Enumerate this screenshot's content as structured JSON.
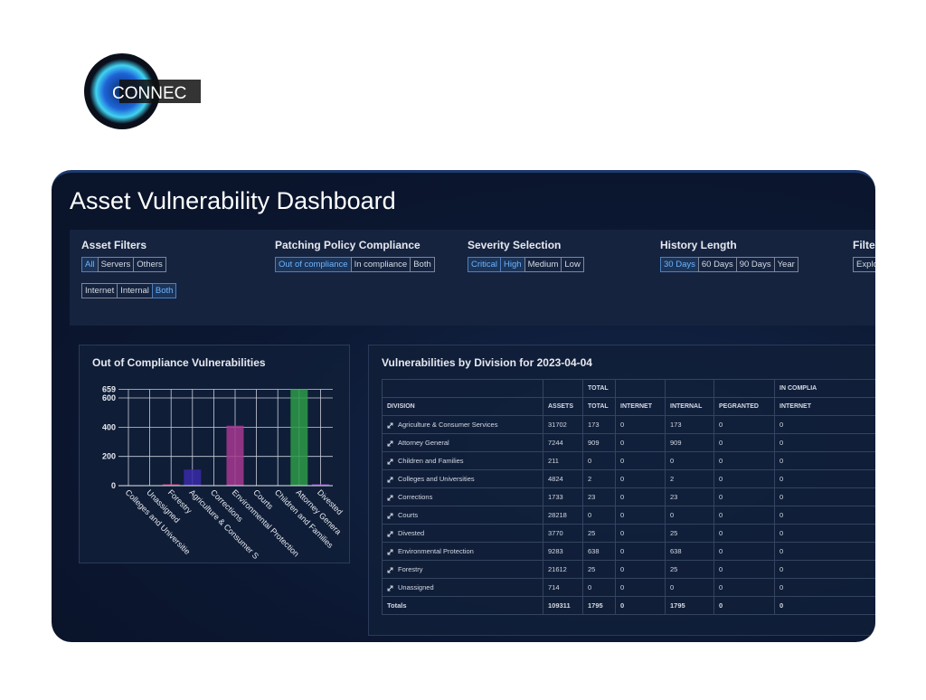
{
  "logo": {
    "text": "CONNEC"
  },
  "header": {
    "title": "Asset Vulnerability Dashboard"
  },
  "filters": [
    {
      "label": "Asset Filters",
      "rows": [
        [
          {
            "label": "All",
            "active": true
          },
          {
            "label": "Servers",
            "active": false
          },
          {
            "label": "Others",
            "active": false
          }
        ],
        [
          {
            "label": "Internet",
            "active": false
          },
          {
            "label": "Internal",
            "active": false
          },
          {
            "label": "Both",
            "active": true
          }
        ]
      ]
    },
    {
      "label": "Patching Policy Compliance",
      "rows": [
        [
          {
            "label": "Out of compliance",
            "active": true
          },
          {
            "label": "In compliance",
            "active": false
          },
          {
            "label": "Both",
            "active": false
          }
        ]
      ]
    },
    {
      "label": "Severity Selection",
      "rows": [
        [
          {
            "label": "Critical",
            "active": true
          },
          {
            "label": "High",
            "active": true
          },
          {
            "label": "Medium",
            "active": false
          },
          {
            "label": "Low",
            "active": false
          }
        ]
      ]
    },
    {
      "label": "History Length",
      "rows": [
        [
          {
            "label": "30 Days",
            "active": true
          },
          {
            "label": "60 Days",
            "active": false
          },
          {
            "label": "90 Days",
            "active": false
          },
          {
            "label": "Year",
            "active": false
          }
        ]
      ]
    },
    {
      "label": "Filte",
      "rows": [
        [
          {
            "label": "Explo",
            "active": false
          }
        ]
      ]
    }
  ],
  "chart_data": {
    "type": "bar",
    "title": "Out of Compliance Vulnerabilities",
    "categories": [
      "Colleges and Universitie",
      "Unassigned",
      "Forestry",
      "Agriculture & Consumer S",
      "Corrections",
      "Environmental Protection",
      "Courts",
      "Children and Families",
      "Attorney Genera",
      "Divested"
    ],
    "values": [
      0,
      0,
      10,
      110,
      0,
      410,
      0,
      0,
      659,
      10
    ],
    "colors": [
      "#c0306a",
      "#c0306a",
      "#c0306a",
      "#3a2aa8",
      "#a4388f",
      "#a4388f",
      "#2d9a48",
      "#2d9a48",
      "#2d9a48",
      "#8a3ac0"
    ],
    "ylim": [
      0,
      659
    ],
    "yticks": [
      0,
      200,
      400,
      600,
      659
    ],
    "grid": true
  },
  "table": {
    "title": "Vulnerabilities by Division for 2023-04-04",
    "group_header": [
      "",
      "",
      "TOTAL",
      "",
      "",
      "",
      "IN COMPLIA"
    ],
    "columns": [
      "DIVISION",
      "ASSETS",
      "TOTAL",
      "INTERNET",
      "INTERNAL",
      "PEGRANTED",
      "INTERNET"
    ],
    "rows": [
      [
        "Agriculture & Consumer Services",
        31702,
        173,
        0,
        173,
        0,
        0
      ],
      [
        "Attorney General",
        7244,
        909,
        0,
        909,
        0,
        0
      ],
      [
        "Children and Families",
        211,
        0,
        0,
        0,
        0,
        0
      ],
      [
        "Colleges and Universities",
        4824,
        2,
        0,
        2,
        0,
        0
      ],
      [
        "Corrections",
        1733,
        23,
        0,
        23,
        0,
        0
      ],
      [
        "Courts",
        28218,
        0,
        0,
        0,
        0,
        0
      ],
      [
        "Divested",
        3770,
        25,
        0,
        25,
        0,
        0
      ],
      [
        "Environmental Protection",
        9283,
        638,
        0,
        638,
        0,
        0
      ],
      [
        "Forestry",
        21612,
        25,
        0,
        25,
        0,
        0
      ],
      [
        "Unassigned",
        714,
        0,
        0,
        0,
        0,
        0
      ]
    ],
    "totals": [
      "Totals",
      109311,
      1795,
      0,
      1795,
      0,
      0
    ]
  }
}
